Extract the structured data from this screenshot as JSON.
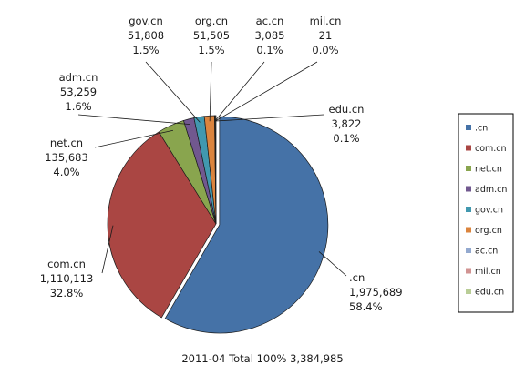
{
  "chart_data": {
    "type": "pie",
    "caption": "2011-04  Total 100%  3,384,985",
    "legend_position": "right",
    "slices": [
      {
        "name": ".cn",
        "value_label": "1,975,689",
        "percent_label": "58.4%",
        "value": 1975689,
        "color": "#4572a7"
      },
      {
        "name": "com.cn",
        "value_label": "1,110,113",
        "percent_label": "32.8%",
        "value": 1110113,
        "color": "#aa4643"
      },
      {
        "name": "net.cn",
        "value_label": "135,683",
        "percent_label": "4.0%",
        "value": 135683,
        "color": "#89a54e"
      },
      {
        "name": "adm.cn",
        "value_label": "53,259",
        "percent_label": "1.6%",
        "value": 53259,
        "color": "#71588f"
      },
      {
        "name": "gov.cn",
        "value_label": "51,808",
        "percent_label": "1.5%",
        "value": 51808,
        "color": "#4198af"
      },
      {
        "name": "org.cn",
        "value_label": "51,505",
        "percent_label": "1.5%",
        "value": 51505,
        "color": "#db843d"
      },
      {
        "name": "ac.cn",
        "value_label": "3,085",
        "percent_label": "0.1%",
        "value": 3085,
        "color": "#93a9cf"
      },
      {
        "name": "mil.cn",
        "value_label": "21",
        "percent_label": "0.0%",
        "value": 21,
        "color": "#d19392"
      },
      {
        "name": "edu.cn",
        "value_label": "3,822",
        "percent_label": "0.1%",
        "value": 3822,
        "color": "#b9cd96"
      }
    ]
  }
}
